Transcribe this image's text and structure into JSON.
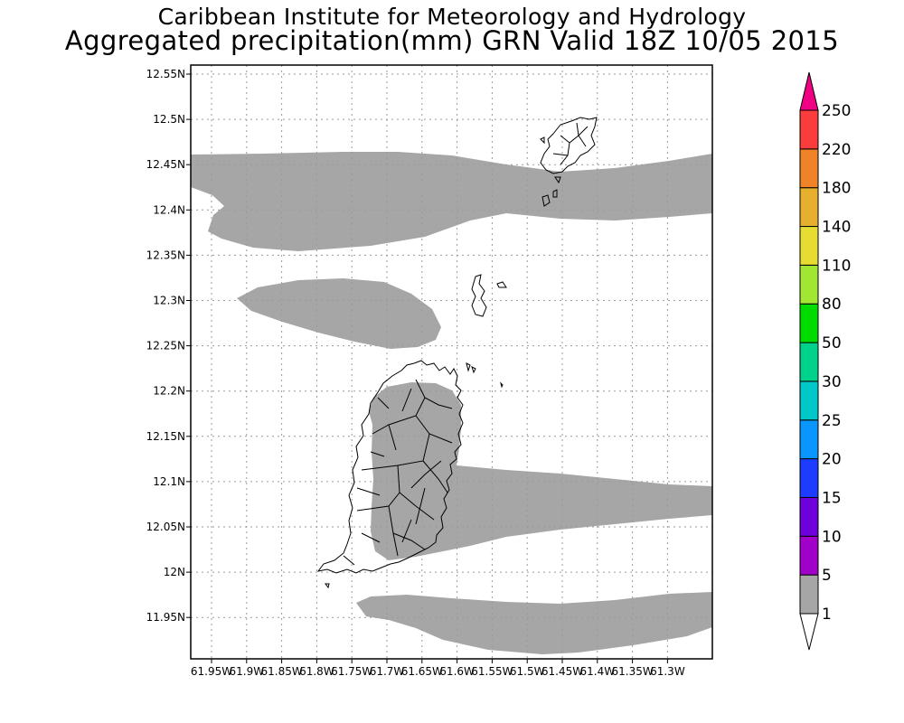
{
  "header": {
    "title": "Caribbean Institute for Meteorology and Hydrology",
    "subtitle": "Aggregated precipitation(mm) GRN Valid 18Z 10/05 2015"
  },
  "map": {
    "lat_labels": [
      "12.55N",
      "12.5N",
      "12.45N",
      "12.4N",
      "12.35N",
      "12.3N",
      "12.25N",
      "12.2N",
      "12.15N",
      "12.1N",
      "12.05N",
      "12N",
      "11.95N"
    ],
    "lon_labels": [
      "61.95W",
      "61.9W",
      "61.85W",
      "61.8W",
      "61.75W",
      "61.7W",
      "61.65W",
      "61.6W",
      "61.55W",
      "61.5W",
      "61.45W",
      "61.4W",
      "61.35W",
      "61.3W"
    ],
    "precip_fill_color": "#a6a6a6",
    "grid": true
  },
  "colorbar": {
    "levels": [
      "1",
      "5",
      "10",
      "15",
      "20",
      "25",
      "30",
      "50",
      "80",
      "110",
      "140",
      "180",
      "220",
      "250"
    ],
    "colors": [
      "#a6a6a6",
      "#a000c8",
      "#6e00dc",
      "#1e3cff",
      "#0a96ff",
      "#00c8c8",
      "#00d28c",
      "#00dc00",
      "#a0e632",
      "#e6dc32",
      "#e6af2d",
      "#f08228",
      "#fa3c3c",
      "#f00082"
    ]
  }
}
